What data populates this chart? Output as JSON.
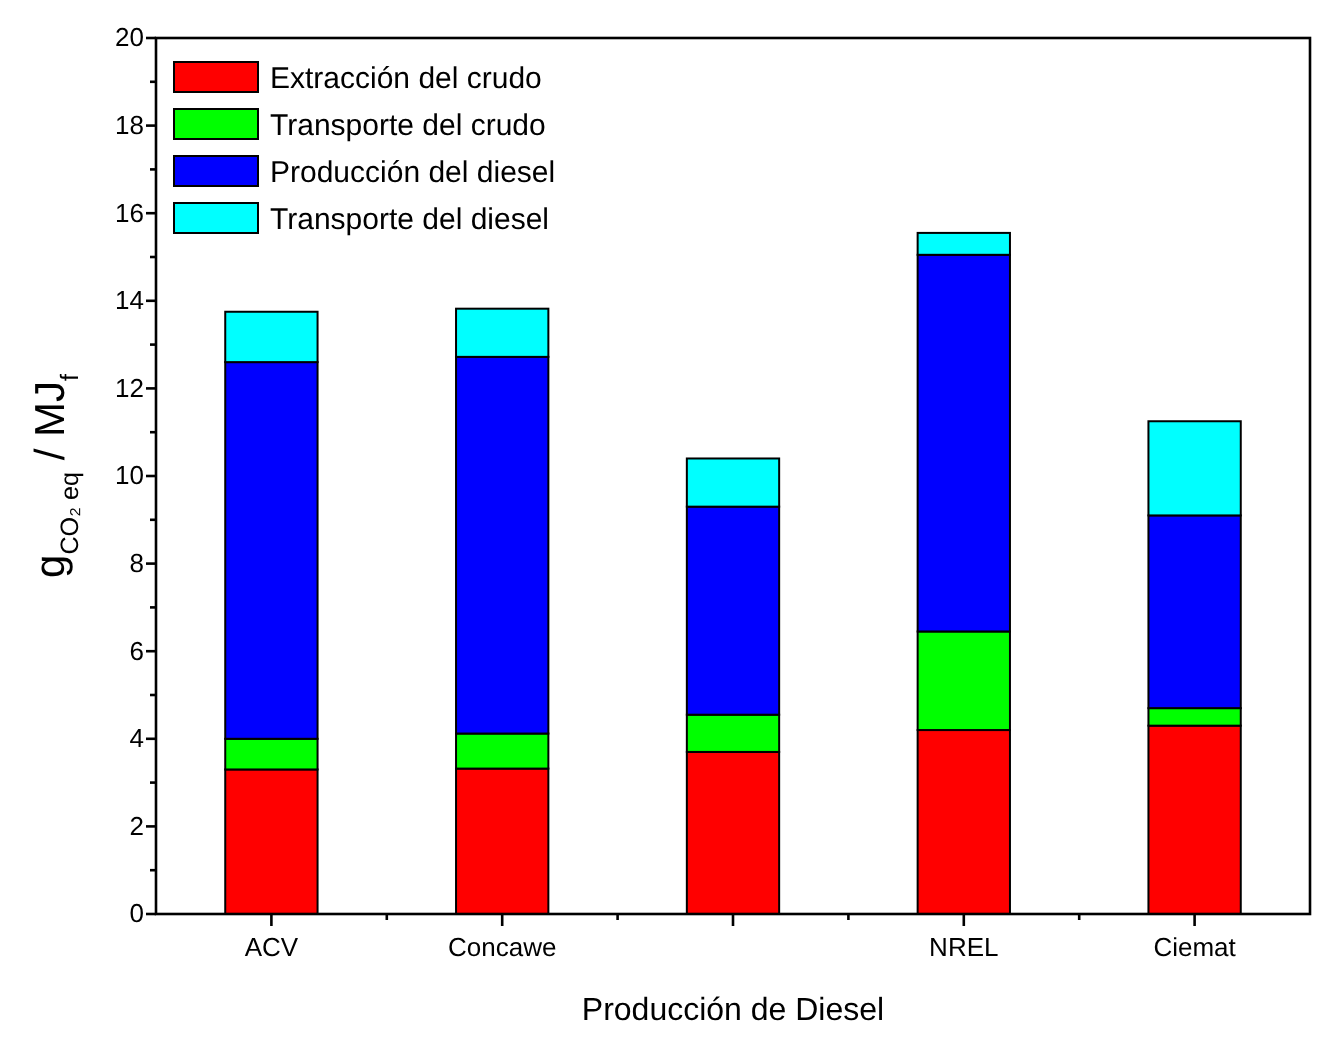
{
  "chart_data": {
    "type": "bar",
    "stacked": true,
    "xlabel": "Producción de Diesel",
    "ylabel": "g$_{CO₂ eq}$ / MJ$_{f}$",
    "categories": [
      "ACV",
      "Concawe",
      null,
      "NREL",
      "Ciemat"
    ],
    "series": [
      {
        "name": "Extracción del crudo",
        "color": "#ff0000",
        "values": [
          3.3,
          3.32,
          3.7,
          4.2,
          4.3
        ]
      },
      {
        "name": "Transporte del crudo",
        "color": "#00ff00",
        "values": [
          0.7,
          0.8,
          0.85,
          2.25,
          0.4
        ]
      },
      {
        "name": "Producción del diesel",
        "color": "#0000ff",
        "values": [
          8.6,
          8.6,
          4.75,
          8.6,
          4.4
        ]
      },
      {
        "name": "Transporte del diesel",
        "color": "#00ffff",
        "values": [
          1.15,
          1.1,
          1.1,
          0.5,
          2.15
        ]
      }
    ],
    "ylim": [
      0,
      20
    ],
    "yticks": [
      0,
      {
        "value": 1,
        "label": null
      },
      2,
      {
        "value": 3,
        "label": null
      },
      4,
      {
        "value": 5,
        "label": null
      },
      6,
      {
        "value": 7,
        "label": null
      },
      8,
      {
        "value": 9,
        "label": null
      },
      10,
      {
        "value": 11,
        "label": null
      },
      12,
      {
        "value": 13,
        "label": null
      },
      14,
      {
        "value": 15,
        "label": null
      },
      16,
      {
        "value": 17,
        "label": null
      },
      18,
      {
        "value": 19,
        "label": null
      },
      20
    ],
    "legend": "top left"
  }
}
